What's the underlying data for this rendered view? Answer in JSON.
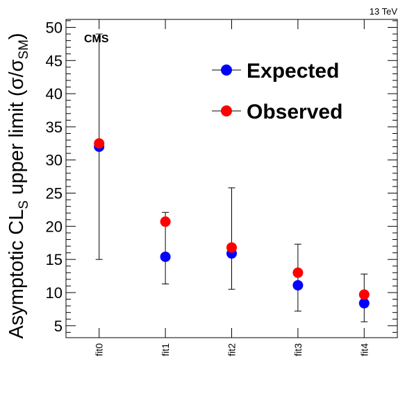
{
  "chart_data": {
    "type": "scatter",
    "energy_label": "13 TeV",
    "experiment_label": "CMS",
    "ylabel": {
      "main": "Asymptotic CL",
      "main_sub": "S",
      "rest": " upper limit (σ/σ",
      "rest_sub": "SM",
      "close": ")"
    },
    "ylim": [
      3.2,
      51.2
    ],
    "yticks": [
      "5",
      "10",
      "15",
      "20",
      "25",
      "30",
      "35",
      "40",
      "45",
      "50"
    ],
    "ytick_values": [
      5,
      10,
      15,
      20,
      25,
      30,
      35,
      40,
      45,
      50
    ],
    "categories": [
      "fit0",
      "fit1",
      "fit2",
      "fit3",
      "fit4"
    ],
    "series": [
      {
        "name": "Expected",
        "color": "#0000ff",
        "values": [
          32.0,
          15.4,
          15.9,
          11.1,
          8.4
        ],
        "err_low": [
          15.0,
          11.3,
          10.5,
          7.2,
          5.6
        ],
        "err_high": [
          49.0,
          22.1,
          25.8,
          17.3,
          12.8
        ]
      },
      {
        "name": "Observed",
        "color": "#ff0000",
        "values": [
          32.5,
          20.7,
          16.8,
          13.0,
          9.7
        ]
      }
    ],
    "legend_position": "top-right",
    "grid": false
  }
}
